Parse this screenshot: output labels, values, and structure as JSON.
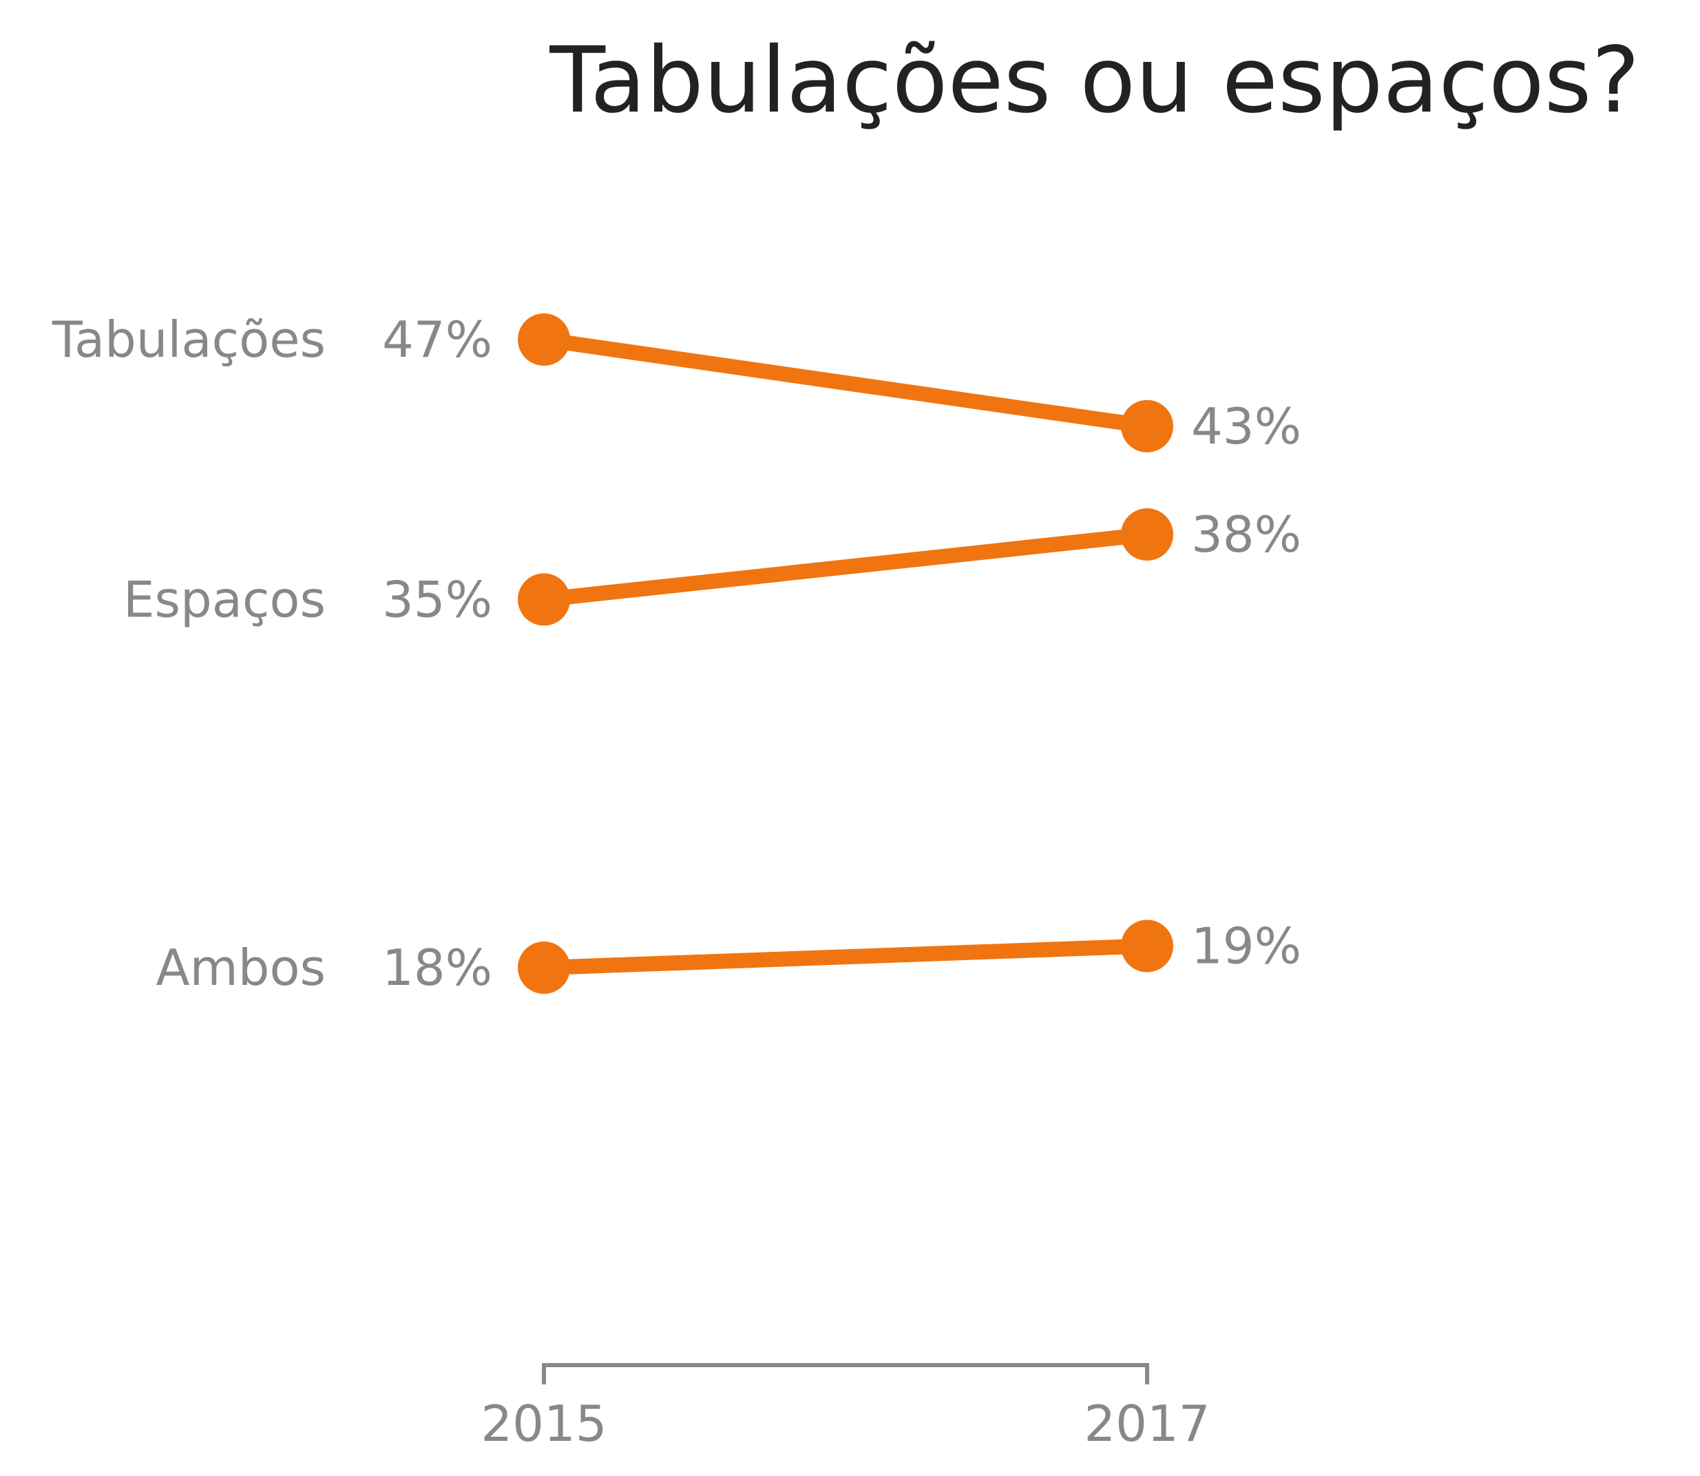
{
  "chart_data": {
    "type": "line",
    "title": "Tabulações ou espaços?",
    "x": [
      "2015",
      "2017"
    ],
    "series": [
      {
        "name": "Tabulações",
        "values": [
          47,
          43
        ],
        "labels": [
          "47%",
          "43%"
        ]
      },
      {
        "name": "Espaços",
        "values": [
          35,
          38
        ],
        "labels": [
          "35%",
          "38%"
        ]
      },
      {
        "name": "Ambos",
        "values": [
          18,
          19
        ],
        "labels": [
          "18%",
          "19%"
        ]
      }
    ],
    "ylim": [
      0,
      56
    ],
    "unit": "%",
    "grid": false,
    "legend": "none",
    "color": "#F07510"
  }
}
